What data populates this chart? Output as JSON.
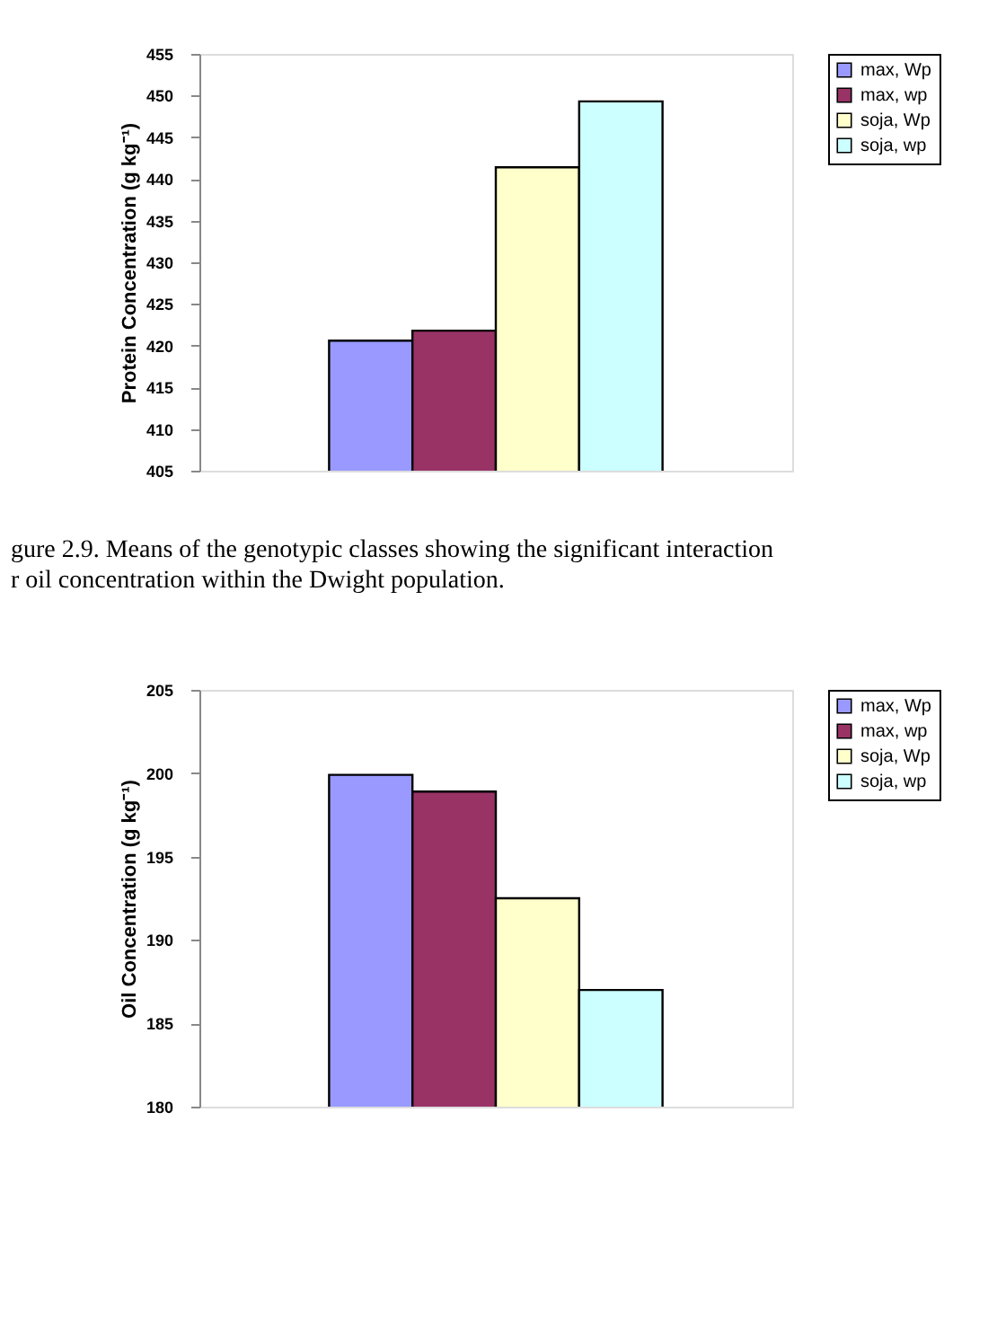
{
  "chart_data": [
    {
      "type": "bar",
      "ylabel": "Protein Concentration (g kg⁻¹)",
      "categories": [
        null
      ],
      "ylim": [
        405,
        455
      ],
      "yticks": [
        405,
        410,
        415,
        420,
        425,
        430,
        435,
        440,
        445,
        450,
        455
      ],
      "grid": false,
      "legend": "right",
      "series": [
        {
          "name": "max, Wp",
          "color": "#9999ff",
          "values": [
            420.6
          ]
        },
        {
          "name": "max, wp",
          "color": "#993366",
          "values": [
            421.8
          ]
        },
        {
          "name": "soja, Wp",
          "color": "#ffffcc",
          "values": [
            441.4
          ]
        },
        {
          "name": "soja, wp",
          "color": "#ccffff",
          "values": [
            449.3
          ]
        }
      ]
    },
    {
      "type": "bar",
      "annotations": [
        "gure 2.9.  Means of the genotypic classes showing the significant interaction",
        "r oil concentration within the Dwight population."
      ],
      "ylabel": "Oil Concentration (g kg⁻¹)",
      "categories": [
        null
      ],
      "ylim": [
        180,
        205
      ],
      "yticks": [
        180,
        185,
        190,
        195,
        200,
        205
      ],
      "grid": false,
      "legend": "right",
      "series": [
        {
          "name": "max, Wp",
          "color": "#9999ff",
          "values": [
            199.9
          ]
        },
        {
          "name": "max, wp",
          "color": "#993366",
          "values": [
            198.9
          ]
        },
        {
          "name": "soja, Wp",
          "color": "#ffffcc",
          "values": [
            192.5
          ]
        },
        {
          "name": "soja, wp",
          "color": "#ccffff",
          "values": [
            187.0
          ]
        }
      ]
    }
  ]
}
